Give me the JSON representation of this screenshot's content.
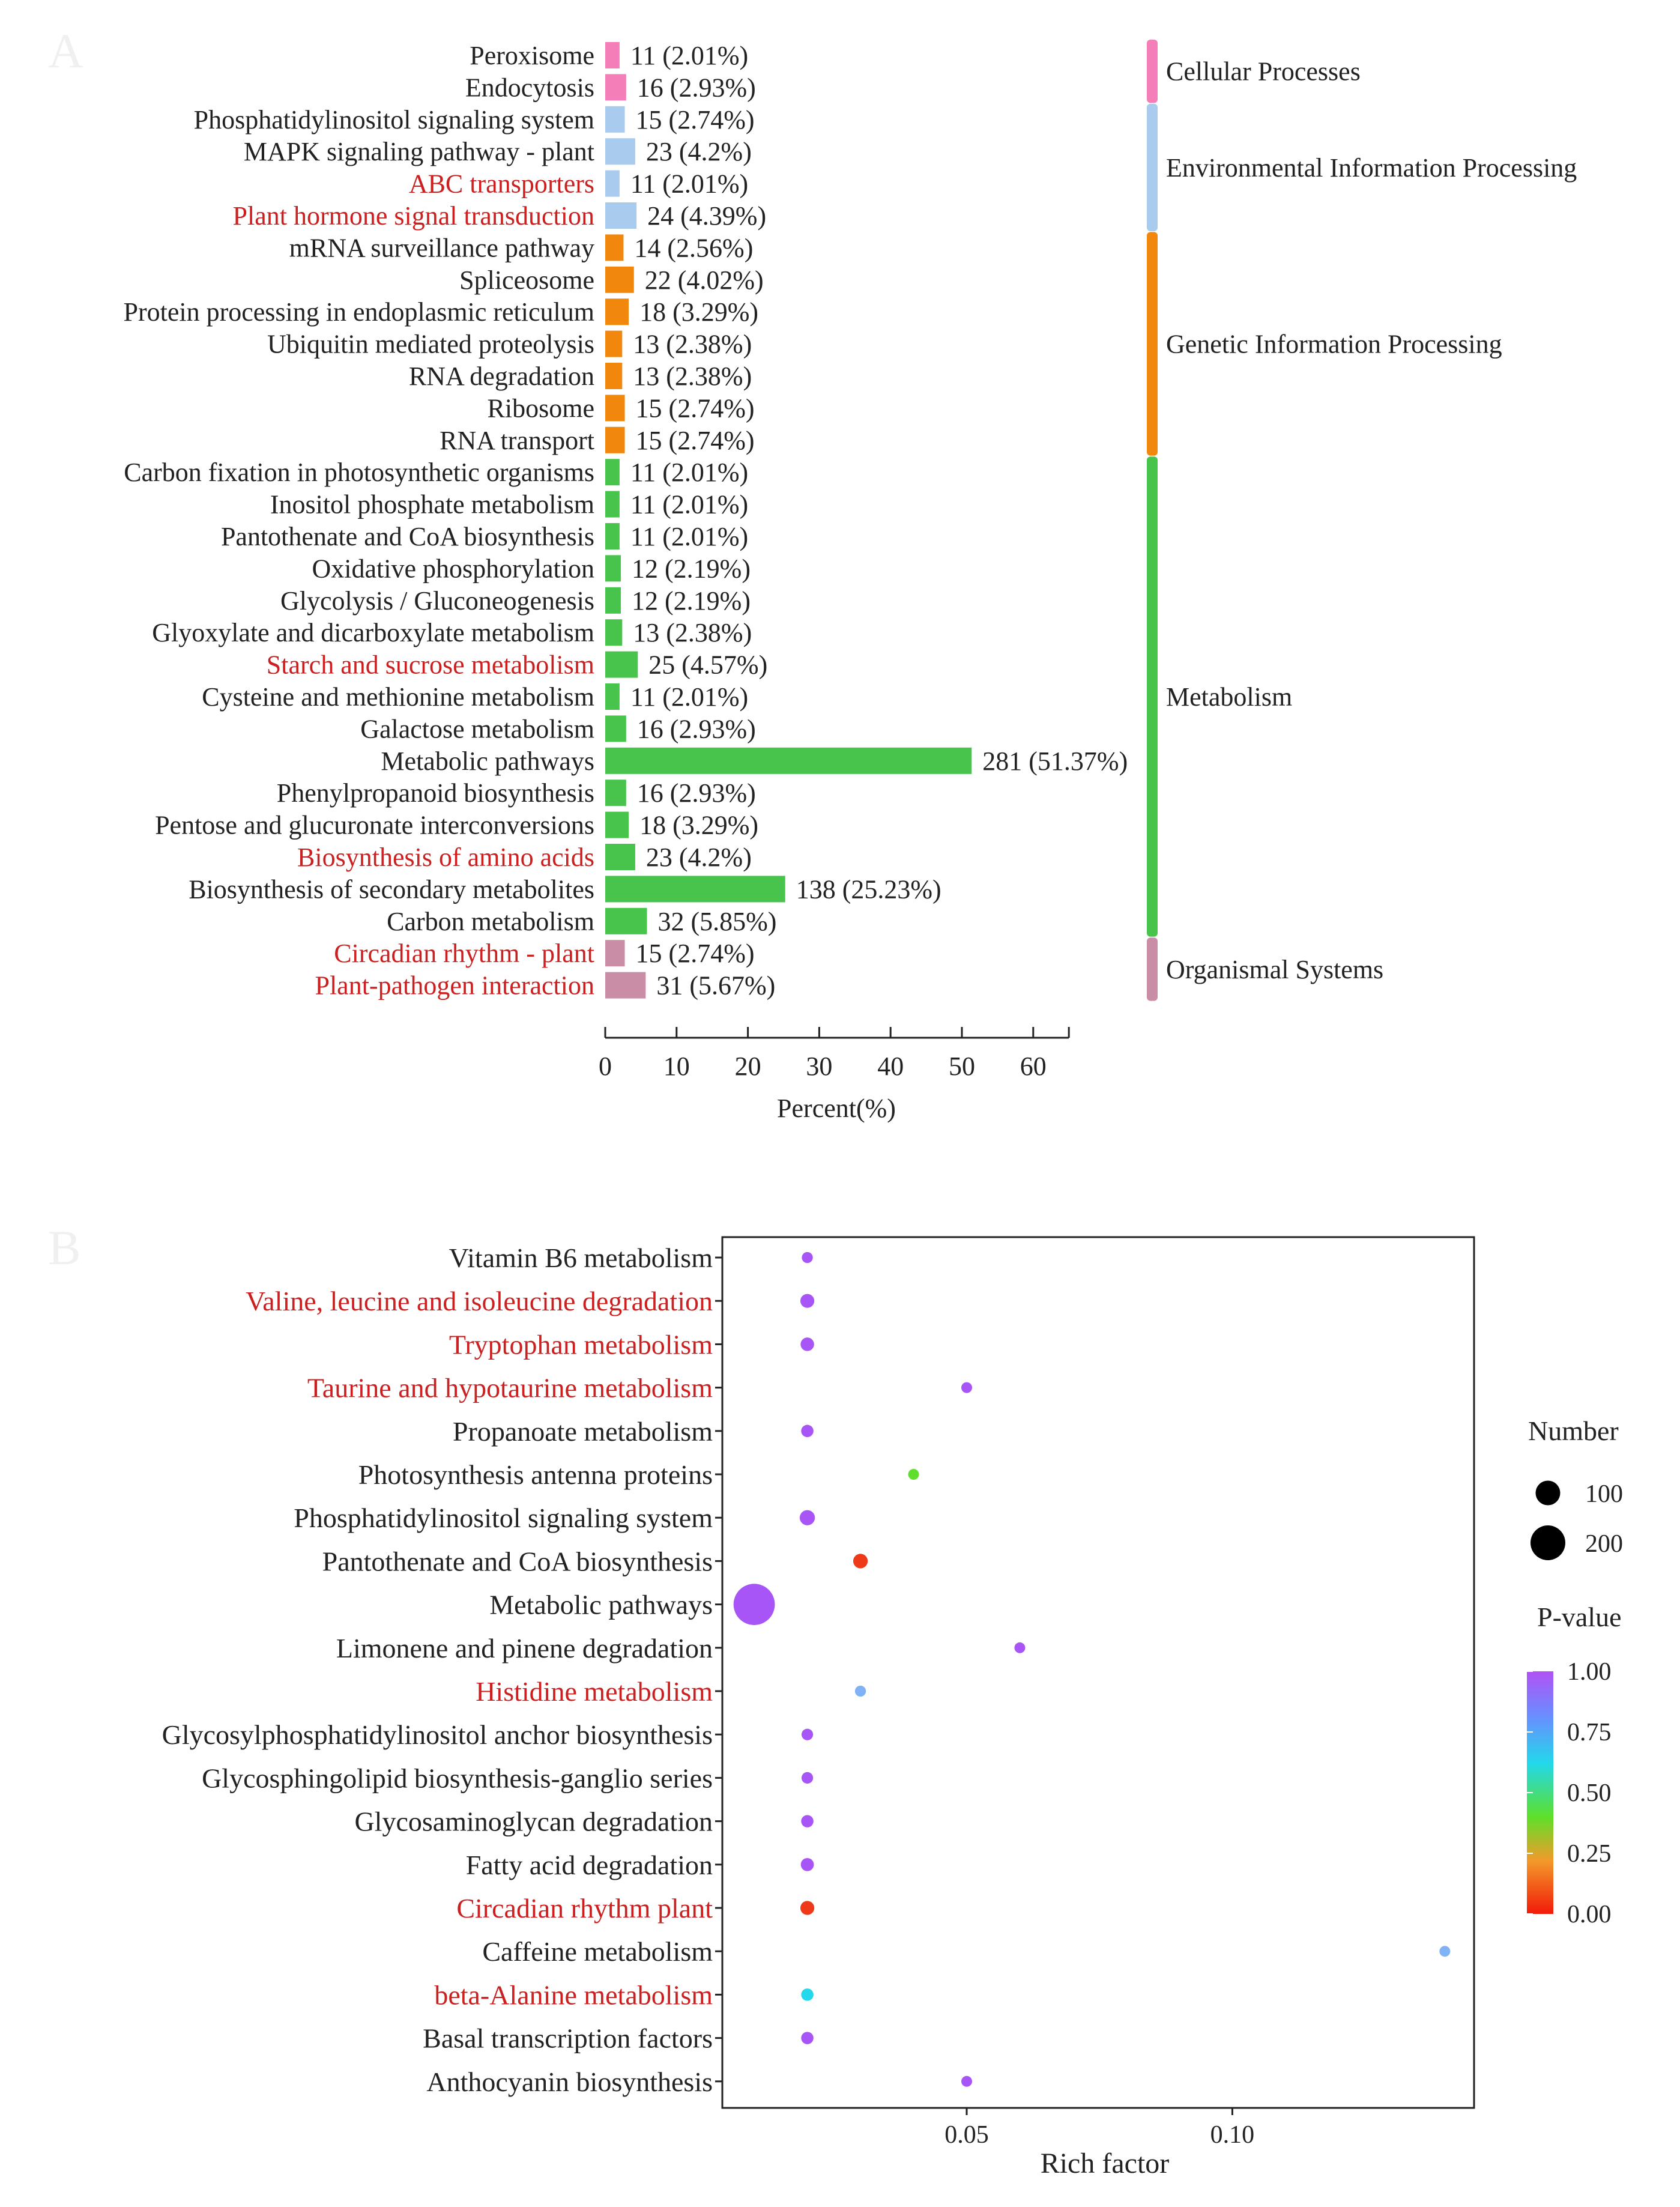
{
  "chart_data": [
    {
      "panel": "A",
      "type": "bar",
      "orientation": "horizontal",
      "xlabel": "Percent(%)",
      "xlim": [
        0,
        65
      ],
      "xticks": [
        0,
        10,
        20,
        30,
        40,
        50,
        60
      ],
      "categories": [
        {
          "label": "Peroxisome",
          "count": 11,
          "pct": 2.01,
          "pct_label": "11  (2.01%)",
          "group": 0,
          "highlight": false
        },
        {
          "label": "Endocytosis",
          "count": 16,
          "pct": 2.93,
          "pct_label": "16  (2.93%)",
          "group": 0,
          "highlight": false
        },
        {
          "label": "Phosphatidylinositol  signaling  system",
          "count": 15,
          "pct": 2.74,
          "pct_label": "15  (2.74%)",
          "group": 1,
          "highlight": false
        },
        {
          "label": "MAPK  signaling  pathway  -  plant",
          "count": 23,
          "pct": 4.2,
          "pct_label": "23  (4.2%)",
          "group": 1,
          "highlight": false
        },
        {
          "label": "ABC  transporters",
          "count": 11,
          "pct": 2.01,
          "pct_label": "11  (2.01%)",
          "group": 1,
          "highlight": true
        },
        {
          "label": "Plant  hormone  signal  transduction",
          "count": 24,
          "pct": 4.39,
          "pct_label": "24  (4.39%)",
          "group": 1,
          "highlight": true
        },
        {
          "label": "mRNA  surveillance  pathway",
          "count": 14,
          "pct": 2.56,
          "pct_label": "14  (2.56%)",
          "group": 2,
          "highlight": false
        },
        {
          "label": "Spliceosome",
          "count": 22,
          "pct": 4.02,
          "pct_label": "22  (4.02%)",
          "group": 2,
          "highlight": false
        },
        {
          "label": "Protein  processing  in  endoplasmic  reticulum",
          "count": 18,
          "pct": 3.29,
          "pct_label": "18  (3.29%)",
          "group": 2,
          "highlight": false
        },
        {
          "label": "Ubiquitin  mediated  proteolysis",
          "count": 13,
          "pct": 2.38,
          "pct_label": "13  (2.38%)",
          "group": 2,
          "highlight": false
        },
        {
          "label": "RNA  degradation",
          "count": 13,
          "pct": 2.38,
          "pct_label": "13  (2.38%)",
          "group": 2,
          "highlight": false
        },
        {
          "label": "Ribosome",
          "count": 15,
          "pct": 2.74,
          "pct_label": "15  (2.74%)",
          "group": 2,
          "highlight": false
        },
        {
          "label": "RNA  transport",
          "count": 15,
          "pct": 2.74,
          "pct_label": "15  (2.74%)",
          "group": 2,
          "highlight": false
        },
        {
          "label": "Carbon  fixation  in  photosynthetic  organisms",
          "count": 11,
          "pct": 2.01,
          "pct_label": "11  (2.01%)",
          "group": 3,
          "highlight": false
        },
        {
          "label": "Inositol  phosphate  metabolism",
          "count": 11,
          "pct": 2.01,
          "pct_label": "11  (2.01%)",
          "group": 3,
          "highlight": false
        },
        {
          "label": "Pantothenate  and  CoA  biosynthesis",
          "count": 11,
          "pct": 2.01,
          "pct_label": "11  (2.01%)",
          "group": 3,
          "highlight": false
        },
        {
          "label": "Oxidative  phosphorylation",
          "count": 12,
          "pct": 2.19,
          "pct_label": "12  (2.19%)",
          "group": 3,
          "highlight": false
        },
        {
          "label": "Glycolysis  /  Gluconeogenesis",
          "count": 12,
          "pct": 2.19,
          "pct_label": "12  (2.19%)",
          "group": 3,
          "highlight": false
        },
        {
          "label": "Glyoxylate  and  dicarboxylate  metabolism",
          "count": 13,
          "pct": 2.38,
          "pct_label": "13  (2.38%)",
          "group": 3,
          "highlight": false
        },
        {
          "label": "Starch  and  sucrose  metabolism",
          "count": 25,
          "pct": 4.57,
          "pct_label": "25  (4.57%)",
          "group": 3,
          "highlight": true
        },
        {
          "label": "Cysteine  and  methionine  metabolism",
          "count": 11,
          "pct": 2.01,
          "pct_label": "11  (2.01%)",
          "group": 3,
          "highlight": false
        },
        {
          "label": "Galactose  metabolism",
          "count": 16,
          "pct": 2.93,
          "pct_label": "16  (2.93%)",
          "group": 3,
          "highlight": false
        },
        {
          "label": "Metabolic  pathways",
          "count": 281,
          "pct": 51.37,
          "pct_label": "281  (51.37%)",
          "group": 3,
          "highlight": false
        },
        {
          "label": "Phenylpropanoid  biosynthesis",
          "count": 16,
          "pct": 2.93,
          "pct_label": "16  (2.93%)",
          "group": 3,
          "highlight": false
        },
        {
          "label": "Pentose  and  glucuronate  interconversions",
          "count": 18,
          "pct": 3.29,
          "pct_label": "18  (3.29%)",
          "group": 3,
          "highlight": false
        },
        {
          "label": "Biosynthesis  of  amino  acids",
          "count": 23,
          "pct": 4.2,
          "pct_label": "23  (4.2%)",
          "group": 3,
          "highlight": true
        },
        {
          "label": "Biosynthesis  of  secondary  metabolites",
          "count": 138,
          "pct": 25.23,
          "pct_label": "138  (25.23%)",
          "group": 3,
          "highlight": false
        },
        {
          "label": "Carbon  metabolism",
          "count": 32,
          "pct": 5.85,
          "pct_label": "32  (5.85%)",
          "group": 3,
          "highlight": false
        },
        {
          "label": "Circadian  rhythm  -  plant",
          "count": 15,
          "pct": 2.74,
          "pct_label": "15  (2.74%)",
          "group": 4,
          "highlight": true
        },
        {
          "label": "Plant-pathogen  interaction",
          "count": 31,
          "pct": 5.67,
          "pct_label": "31  (5.67%)",
          "group": 4,
          "highlight": true
        }
      ],
      "groups": [
        {
          "name": "Cellular  Processes",
          "color": "#F47EB8"
        },
        {
          "name": "Environmental  Information  Processing",
          "color": "#A9CCEE"
        },
        {
          "name": "Genetic  Information  Processing",
          "color": "#F2870E"
        },
        {
          "name": "Metabolism",
          "color": "#48C44C"
        },
        {
          "name": "Organismal  Systems",
          "color": "#C98EA6"
        }
      ]
    },
    {
      "panel": "B",
      "type": "scatter",
      "xlabel": "Rich factor",
      "xlim": [
        0.004,
        0.1455
      ],
      "xticks": [
        0.05,
        0.1
      ],
      "xtick_labels": [
        "0.05",
        "0.10"
      ],
      "points": [
        {
          "label": "Vitamin B6 metabolism",
          "x": 0.02,
          "number": 20,
          "p": 1.0,
          "color": "#A855F7",
          "highlight": false
        },
        {
          "label": "Valine, leucine and isoleucine degradation",
          "x": 0.02,
          "number": 32,
          "p": 0.98,
          "color": "#A855F7",
          "highlight": true
        },
        {
          "label": "Tryptophan metabolism",
          "x": 0.02,
          "number": 30,
          "p": 0.98,
          "color": "#A855F7",
          "highlight": true
        },
        {
          "label": "Taurine and hypotaurine metabolism",
          "x": 0.05,
          "number": 4,
          "p": 1.0,
          "color": "#A855F7",
          "highlight": true
        },
        {
          "label": "Propanoate metabolism",
          "x": 0.02,
          "number": 25,
          "p": 1.0,
          "color": "#A855F7",
          "highlight": false
        },
        {
          "label": "Photosynthesis  antenna proteins",
          "x": 0.04,
          "number": 18,
          "p": 0.45,
          "color": "#5EE02A",
          "highlight": false
        },
        {
          "label": "Phosphatidylinositol signaling system",
          "x": 0.02,
          "number": 38,
          "p": 0.98,
          "color": "#A855F7",
          "highlight": false
        },
        {
          "label": "Pantothenate and CoA biosynthesis",
          "x": 0.03,
          "number": 35,
          "p": 0.03,
          "color": "#EE3A18",
          "highlight": false
        },
        {
          "label": "Metabolic pathways",
          "x": 0.01,
          "number": 281,
          "p": 0.98,
          "color": "#A855F7",
          "highlight": false
        },
        {
          "label": "Limonene and pinene degradation",
          "x": 0.06,
          "number": 4,
          "p": 1.0,
          "color": "#A855F7",
          "highlight": false
        },
        {
          "label": "Histidine metabolism",
          "x": 0.03,
          "number": 20,
          "p": 0.85,
          "color": "#7FB3F5",
          "highlight": true
        },
        {
          "label": "Glycosylphosphatidylinositol anchor biosynthesis",
          "x": 0.02,
          "number": 22,
          "p": 1.0,
          "color": "#A855F7",
          "highlight": false
        },
        {
          "label": "Glycosphingolipid biosynthesis-ganglio series",
          "x": 0.02,
          "number": 22,
          "p": 1.0,
          "color": "#A855F7",
          "highlight": false
        },
        {
          "label": "Glycosaminoglycan degradation",
          "x": 0.02,
          "number": 25,
          "p": 1.0,
          "color": "#A855F7",
          "highlight": false
        },
        {
          "label": "Fatty acid degradation",
          "x": 0.02,
          "number": 28,
          "p": 1.0,
          "color": "#A855F7",
          "highlight": false
        },
        {
          "label": "Circadian rhythm  plant",
          "x": 0.02,
          "number": 32,
          "p": 0.05,
          "color": "#EE3A18",
          "highlight": true
        },
        {
          "label": "Caffeine metabolism",
          "x": 0.14,
          "number": 3,
          "p": 0.85,
          "color": "#7FB3F5",
          "highlight": false
        },
        {
          "label": "beta-Alanine metabolism",
          "x": 0.02,
          "number": 25,
          "p": 0.7,
          "color": "#22D8EA",
          "highlight": true
        },
        {
          "label": "Basal transcription factors",
          "x": 0.02,
          "number": 25,
          "p": 1.0,
          "color": "#A855F7",
          "highlight": false
        },
        {
          "label": "Anthocyanin biosynthesis",
          "x": 0.05,
          "number": 3,
          "p": 1.0,
          "color": "#A855F7",
          "highlight": false
        }
      ],
      "legend_size": {
        "title": "Number",
        "values": [
          100,
          200
        ]
      },
      "legend_color": {
        "title": "P-value",
        "ticks": [
          "1.00",
          "0.75",
          "0.50",
          "0.25",
          "0.00"
        ]
      }
    }
  ],
  "panel_labels": [
    "A",
    "B"
  ],
  "colors": {
    "highlight_text": "#CC1F1F",
    "text": "#222222"
  }
}
